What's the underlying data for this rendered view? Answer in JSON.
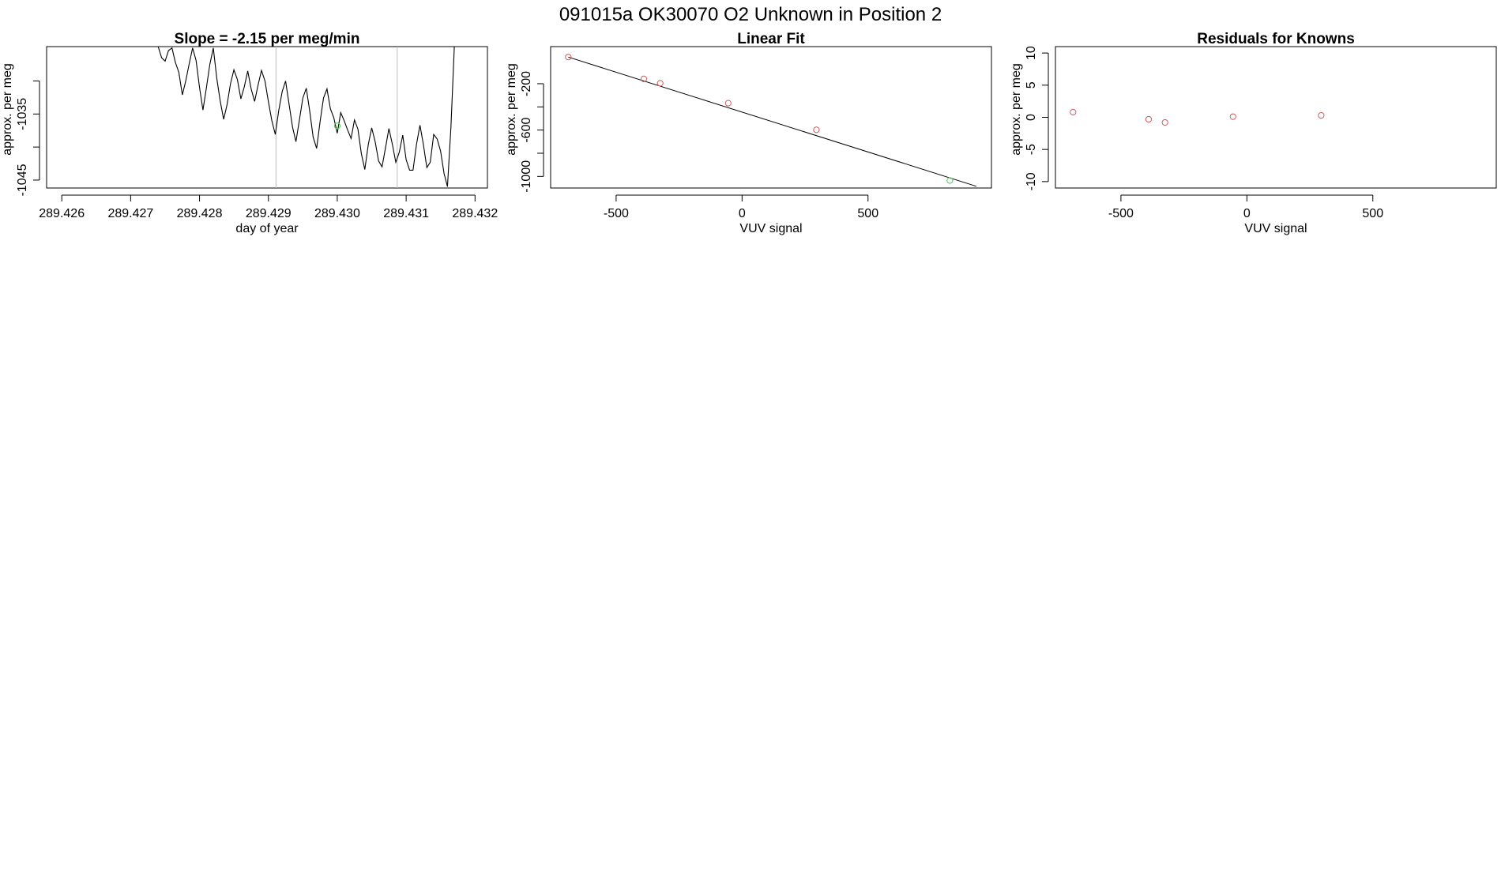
{
  "page": {
    "main_title": "091015a      OK30070   O2 Unknown in Position  2"
  },
  "colors": {
    "known_points": "#cd5c5c",
    "unknown_point": "#3cd83c",
    "line": "#000000",
    "marker_lines": "#bebebe"
  },
  "chart_data": [
    {
      "type": "line",
      "title": "Slope =  -2.15  per meg/min",
      "xlabel": "day of year",
      "ylabel": "approx. per meg",
      "xlim": [
        289.42578,
        289.43218
      ],
      "ylim": [
        -1046.2,
        -1024.8
      ],
      "x_ticks": [
        289.426,
        289.427,
        289.428,
        289.429,
        289.43,
        289.431,
        289.432
      ],
      "x_tick_labels": [
        "289.426",
        "289.427",
        "289.428",
        "289.429",
        "289.430",
        "289.431",
        "289.432"
      ],
      "y_ticks": [
        -1045,
        -1040,
        -1035,
        -1030
      ],
      "y_tick_labels": [
        "-1045",
        "",
        "-1035",
        ""
      ],
      "vertical_markers": [
        289.42911,
        289.43087
      ],
      "highlight_point": {
        "x": 289.43,
        "y": -1036.8
      },
      "series": [
        {
          "x": [
            289.4274,
            289.42745,
            289.4275,
            289.42755,
            289.4276,
            289.42765,
            289.4277,
            289.42775,
            289.4278,
            289.42785,
            289.4279,
            289.42795,
            289.428,
            289.42805,
            289.4281,
            289.42815,
            289.4282,
            289.42825,
            289.4283,
            289.42835,
            289.4284,
            289.42845,
            289.4285,
            289.42855,
            289.4286,
            289.42865,
            289.4287,
            289.42875,
            289.4288,
            289.42885,
            289.4289,
            289.42895,
            289.429,
            289.42905,
            289.4291,
            289.42915,
            289.4292,
            289.42925,
            289.4293,
            289.42935,
            289.4294,
            289.42945,
            289.4295,
            289.42955,
            289.4296,
            289.42965,
            289.4297,
            289.42975,
            289.4298,
            289.42985,
            289.4299,
            289.42995,
            289.43,
            289.43005,
            289.4301,
            289.43015,
            289.4302,
            289.43025,
            289.4303,
            289.43035,
            289.4304,
            289.43045,
            289.4305,
            289.43055,
            289.4306,
            289.43065,
            289.4307,
            289.43075,
            289.4308,
            289.43085,
            289.4309,
            289.43095,
            289.431,
            289.43105,
            289.4311,
            289.43115,
            289.4312,
            289.43125,
            289.4313,
            289.43135,
            289.4314,
            289.43145,
            289.4315,
            289.43155,
            289.4316,
            289.43165,
            289.4317
          ],
          "y": [
            -1024.8,
            -1026.5,
            -1027.0,
            -1025.4,
            -1025.0,
            -1027.2,
            -1028.7,
            -1032.1,
            -1030.0,
            -1027.4,
            -1025.0,
            -1026.9,
            -1031.0,
            -1034.4,
            -1031.0,
            -1027.5,
            -1025.0,
            -1029.6,
            -1033.0,
            -1035.8,
            -1033.6,
            -1030.4,
            -1028.3,
            -1029.8,
            -1032.7,
            -1030.9,
            -1028.5,
            -1031.2,
            -1033.1,
            -1030.6,
            -1028.4,
            -1030.0,
            -1033.1,
            -1036.0,
            -1038.1,
            -1034.5,
            -1031.6,
            -1030.0,
            -1033.5,
            -1037.0,
            -1039.2,
            -1035.9,
            -1032.6,
            -1031.1,
            -1034.6,
            -1038.5,
            -1040.2,
            -1036.2,
            -1032.6,
            -1031.2,
            -1034.2,
            -1035.6,
            -1037.9,
            -1034.8,
            -1036.0,
            -1037.4,
            -1038.7,
            -1035.9,
            -1037.3,
            -1041.0,
            -1043.4,
            -1039.6,
            -1037.1,
            -1039.2,
            -1042.1,
            -1043.0,
            -1040.1,
            -1037.2,
            -1039.6,
            -1042.3,
            -1040.8,
            -1038.2,
            -1041.9,
            -1043.5,
            -1043.5,
            -1039.6,
            -1036.7,
            -1039.6,
            -1043.1,
            -1042.3,
            -1038.1,
            -1038.8,
            -1040.6,
            -1044.0,
            -1046.0,
            -1037.0,
            -1024.8
          ]
        }
      ]
    },
    {
      "type": "scatter",
      "title": "Linear Fit",
      "xlabel": "VUV signal",
      "ylabel": "approx. per meg",
      "xlim": [
        -760,
        990
      ],
      "ylim": [
        -1100,
        120
      ],
      "x_ticks": [
        -500,
        0,
        500
      ],
      "x_tick_labels": [
        "-500",
        "0",
        "500"
      ],
      "y_ticks": [
        -1000,
        -800,
        -600,
        -400,
        -200
      ],
      "y_tick_labels": [
        "-1000",
        "",
        "-600",
        "",
        "-200"
      ],
      "fit_line": {
        "x": [
          -690,
          930
        ],
        "y": [
          30,
          -1085
        ]
      },
      "known_points": {
        "x": [
          -690,
          -390,
          -325,
          -55,
          295
        ],
        "y": [
          30,
          -158,
          -196,
          -368,
          -598
        ]
      },
      "unknown_point": {
        "x": 825,
        "y": -1035
      }
    },
    {
      "type": "scatter",
      "title": "Residuals for Knowns",
      "xlabel": "VUV signal",
      "ylabel": "approx. per meg",
      "xlim": [
        -760,
        990
      ],
      "ylim": [
        -11,
        11
      ],
      "x_ticks": [
        -500,
        0,
        500
      ],
      "x_tick_labels": [
        "-500",
        "0",
        "500"
      ],
      "y_ticks": [
        -10,
        -5,
        0,
        5,
        10
      ],
      "y_tick_labels": [
        "-10",
        "-5",
        "0",
        "5",
        "10"
      ],
      "known_points": {
        "x": [
          -690,
          -390,
          -325,
          -55,
          295
        ],
        "y": [
          0.8,
          -0.3,
          -0.8,
          0.1,
          0.3
        ]
      }
    }
  ]
}
